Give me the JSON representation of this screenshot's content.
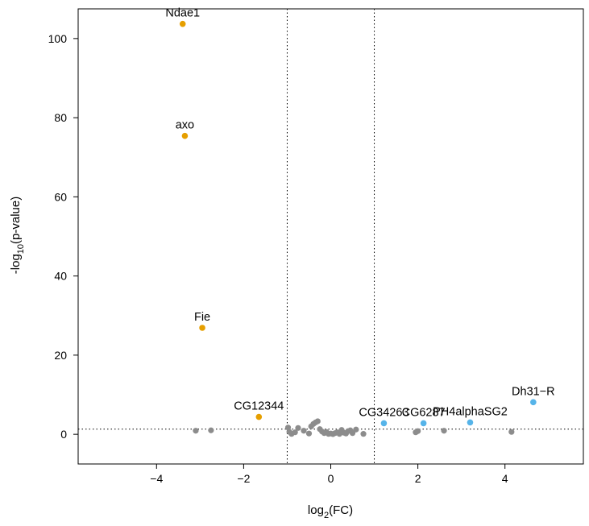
{
  "chart_data": {
    "type": "scatter",
    "title": "",
    "xlabel": {
      "base": "log",
      "sub": "2",
      "rest": "(FC)"
    },
    "ylabel": {
      "base": "-log",
      "sub": "10",
      "rest": "(p-value)"
    },
    "xlim": [
      -5.8,
      5.8
    ],
    "ylim": [
      -7.5,
      107.5
    ],
    "x_ticks": [
      -4,
      -2,
      0,
      2,
      4
    ],
    "x_tick_labels": [
      "−4",
      "−2",
      "0",
      "2",
      "4"
    ],
    "y_ticks": [
      0,
      20,
      40,
      60,
      80,
      100
    ],
    "y_tick_labels": [
      "0",
      "20",
      "40",
      "60",
      "80",
      "100"
    ],
    "thresholds": {
      "fc_low": -1,
      "fc_high": 1,
      "p_value": 1.3
    },
    "colors": {
      "down": "#E69F00",
      "up": "#56B4E9",
      "ns": "#8C8C8C"
    },
    "labeled_points": [
      {
        "label": "Ndae1",
        "x": -3.4,
        "y": 103.7,
        "group": "down"
      },
      {
        "label": "axo",
        "x": -3.35,
        "y": 75.4,
        "group": "down"
      },
      {
        "label": "Fie",
        "x": -2.95,
        "y": 26.9,
        "group": "down"
      },
      {
        "label": "CG12344",
        "x": -1.65,
        "y": 4.4,
        "group": "down"
      },
      {
        "label": "CG34263",
        "x": 1.22,
        "y": 2.8,
        "group": "up"
      },
      {
        "label": "CG6287",
        "x": 2.13,
        "y": 2.8,
        "group": "up"
      },
      {
        "label": "PH4alphaSG2",
        "x": 3.2,
        "y": 3.0,
        "group": "up"
      },
      {
        "label": "Dh31−R",
        "x": 4.65,
        "y": 8.1,
        "group": "up"
      }
    ],
    "ns_points": [
      {
        "x": -3.1,
        "y": 0.9
      },
      {
        "x": -2.75,
        "y": 1.0
      },
      {
        "x": -0.98,
        "y": 1.7
      },
      {
        "x": -0.95,
        "y": 0.6
      },
      {
        "x": -0.9,
        "y": 0.1
      },
      {
        "x": -0.82,
        "y": 0.5
      },
      {
        "x": -0.75,
        "y": 1.6
      },
      {
        "x": -0.62,
        "y": 0.9
      },
      {
        "x": -0.5,
        "y": 0.2
      },
      {
        "x": -0.45,
        "y": 2.0
      },
      {
        "x": -0.4,
        "y": 2.6
      },
      {
        "x": -0.35,
        "y": 3.0
      },
      {
        "x": -0.3,
        "y": 3.3
      },
      {
        "x": -0.25,
        "y": 1.3
      },
      {
        "x": -0.2,
        "y": 0.7
      },
      {
        "x": -0.15,
        "y": 0.3
      },
      {
        "x": -0.1,
        "y": 0.6
      },
      {
        "x": -0.05,
        "y": 0.1
      },
      {
        "x": 0.0,
        "y": 0.2
      },
      {
        "x": 0.05,
        "y": 0.05
      },
      {
        "x": 0.1,
        "y": 0.3
      },
      {
        "x": 0.15,
        "y": 0.5
      },
      {
        "x": 0.2,
        "y": 0.1
      },
      {
        "x": 0.25,
        "y": 1.1
      },
      {
        "x": 0.3,
        "y": 0.4
      },
      {
        "x": 0.35,
        "y": 0.2
      },
      {
        "x": 0.4,
        "y": 0.8
      },
      {
        "x": 0.45,
        "y": 1.0
      },
      {
        "x": 0.5,
        "y": 0.3
      },
      {
        "x": 0.58,
        "y": 1.2
      },
      {
        "x": 0.75,
        "y": 0.1
      },
      {
        "x": 1.95,
        "y": 0.5
      },
      {
        "x": 2.0,
        "y": 0.8
      },
      {
        "x": 2.6,
        "y": 0.9
      },
      {
        "x": 4.15,
        "y": 0.6
      }
    ]
  }
}
